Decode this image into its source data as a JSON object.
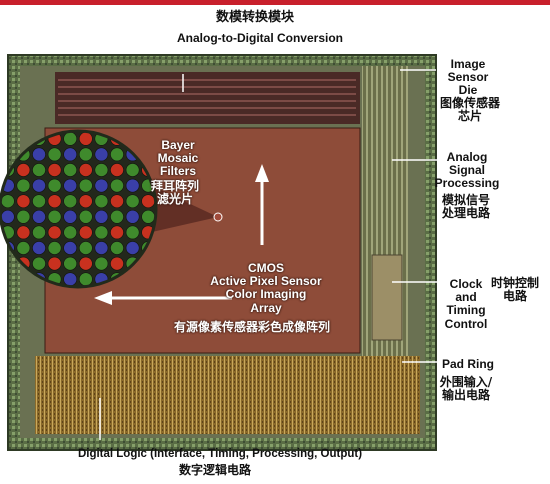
{
  "colors": {
    "accent_bar": "#c8202c",
    "die_border": "#5a6d45",
    "pixel_array": "#8e4c39",
    "digital_logic": "#8a6a2a",
    "label_text": "#111111",
    "overlay_text": "#ffffff"
  },
  "labels": {
    "adc_cn": "数模转换模块",
    "adc_en": "Analog-to-Digital Conversion",
    "die_en": "Image\nSensor\nDie",
    "die_cn": "图像传感器\n芯片",
    "asp_en": "Analog\nSignal\nProcessing",
    "asp_cn": "模拟信号\n处理电路",
    "clock_en": "Clock\nand\nTiming\nControl",
    "clock_cn": "时钟控制\n电路",
    "pad_en": "Pad Ring",
    "pad_cn": "外围输入/\n输出电路",
    "dl_en": "Digital Logic (Interface, Timing, Processing, Output)",
    "dl_cn": "数字逻辑电路",
    "bayer_en": "Bayer\nMosaic\nFilters",
    "bayer_cn": "拜耳阵列\n滤光片",
    "cmos_en": "CMOS\nActive Pixel Sensor\nColor Imaging\nArray",
    "cmos_cn": "有源像素传感器彩色成像阵列"
  },
  "bayer_grid": {
    "size": 10,
    "pattern": [
      [
        "#3f8a2c",
        "#c8311f"
      ],
      [
        "#3a3fa8",
        "#3f8a2c"
      ]
    ]
  }
}
